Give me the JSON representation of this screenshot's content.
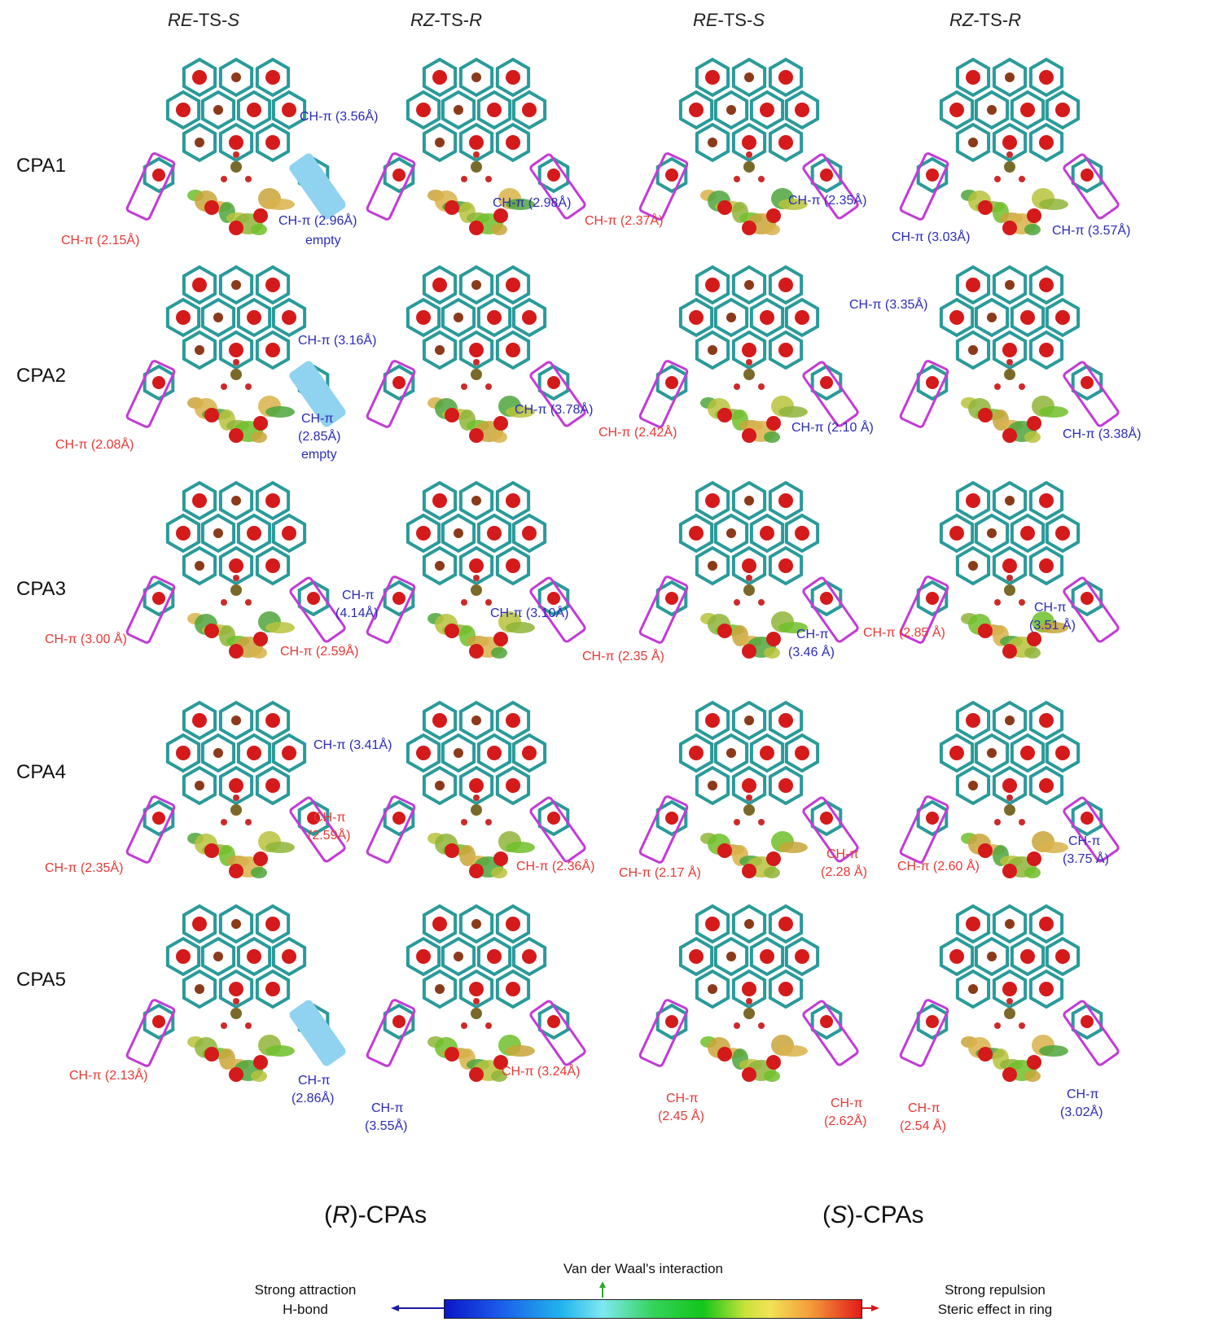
{
  "column_headers": [
    "RE-TS-S",
    "RZ-TS-R",
    "RE-TS-S",
    "RZ-TS-R"
  ],
  "row_headers": [
    "CPA1",
    "CPA2",
    "CPA3",
    "CPA4",
    "CPA5"
  ],
  "configurations": [
    "(R)-CPAs",
    "(S)-CPAs"
  ],
  "labels": {
    "r1": [
      "CH-π (2.15Å)",
      "CH-π (2.96Å)",
      "empty",
      "CH-π (3.56Å)",
      "CH-π (2.98Å)",
      "CH-π (2.37Å)",
      "CH-π (2.35Å)",
      "CH-π (3.03Å)",
      "CH-π (3.57Å)"
    ],
    "r2": [
      "CH-π (2.08Å)",
      "CH-π",
      "(2.85Å)",
      "empty",
      "CH-π (3.16Å)",
      "CH-π (3.78Å)",
      "CH-π (2.42Å)",
      "CH-π (2.10 Å)",
      "CH-π (3.35Å)",
      "CH-π (3.38Å)"
    ],
    "r3": [
      "CH-π (3.00 Å)",
      "CH-π (2.59Å)",
      "CH-π",
      "(4.14Å)",
      "CH-π (3.10Å)",
      "CH-π (2.35 Å)",
      "CH-π",
      "(3.46 Å)",
      "CH-π (2.85 Å)",
      "CH-π",
      "(3.51 Å)"
    ],
    "r4": [
      "CH-π (2.35Å)",
      "CH-π",
      "(2.59Å)",
      "CH-π (3.41Å)",
      "CH-π (2.36Å)",
      "CH-π (2.17 Å)",
      "CH-π",
      "(2.28 Å)",
      "CH-π (2.60 Å)",
      "CH-π",
      "(3.75 Å)"
    ],
    "r5": [
      "CH-π (2.13Å)",
      "CH-π",
      "(2.86Å)",
      "CH-π",
      "(3.55Å)",
      "CH-π (3.24Å)",
      "CH-π",
      "(2.45 Å)",
      "CH-π",
      "(2.62Å)",
      "CH-π",
      "(2.54 Å)",
      "CH-π",
      "(3.02Å)"
    ]
  },
  "legend": {
    "top": "Van der Waal's interaction",
    "left_1": "Strong attraction",
    "left_2": "H-bond",
    "right_1": "Strong repulsion",
    "right_2": "Steric effect in ring"
  },
  "colors": {
    "attractive_label": "#e53935",
    "repulsive_label": "#2b2bb8",
    "box": "#c23bd6",
    "empty_box": "#8fd3f0",
    "bond": "#2a9a9a",
    "ring_center": "#d41a1a"
  }
}
